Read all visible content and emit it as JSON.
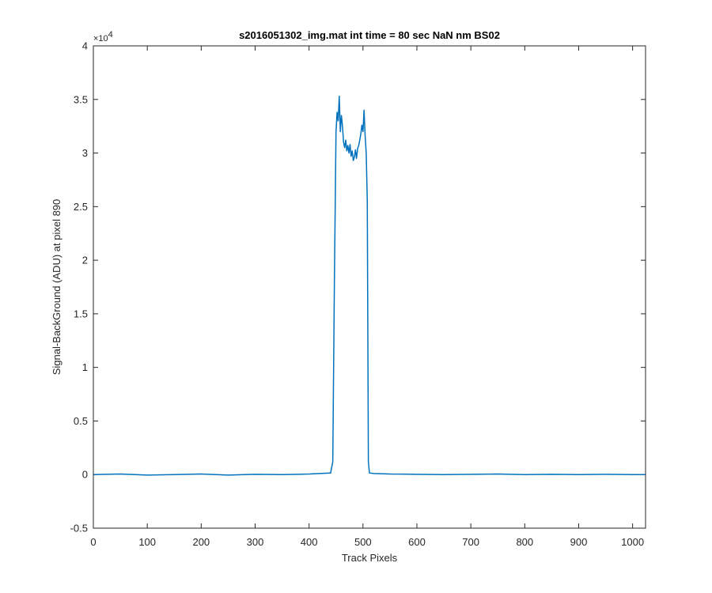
{
  "chart_data": {
    "type": "line",
    "title": "s2016051302_img.mat int time = 80 sec  NaN nm BS02",
    "xlabel": "Track Pixels",
    "ylabel": "Signal-BackGround (ADU) at pixel 890",
    "xlim": [
      0,
      1024
    ],
    "ylim": [
      -5000,
      40000
    ],
    "y_multiplier_label": "×10",
    "y_multiplier_exponent": "4",
    "xticks": [
      0,
      100,
      200,
      300,
      400,
      500,
      600,
      700,
      800,
      900,
      1000
    ],
    "xtick_labels": [
      "0",
      "100",
      "200",
      "300",
      "400",
      "500",
      "600",
      "700",
      "800",
      "900",
      "1000"
    ],
    "yticks": [
      -5000,
      0,
      5000,
      10000,
      15000,
      20000,
      25000,
      30000,
      35000,
      40000
    ],
    "ytick_labels": [
      "-0.5",
      "0",
      "0.5",
      "1",
      "1.5",
      "2",
      "2.5",
      "3",
      "3.5",
      "4"
    ],
    "grid": false,
    "series": [
      {
        "color": "#0072BD",
        "x": [
          0,
          50,
          100,
          150,
          200,
          250,
          300,
          350,
          400,
          440,
          444,
          447,
          450,
          452,
          454,
          456,
          458,
          460,
          462,
          464,
          466,
          468,
          470,
          472,
          474,
          476,
          478,
          480,
          482,
          484,
          486,
          488,
          490,
          492,
          494,
          496,
          498,
          500,
          502,
          504,
          506,
          508,
          510,
          512,
          520,
          550,
          600,
          650,
          700,
          750,
          800,
          850,
          900,
          950,
          1000,
          1024
        ],
        "y": [
          0,
          50,
          -50,
          0,
          50,
          -50,
          30,
          0,
          50,
          150,
          1200,
          18000,
          32000,
          33800,
          33000,
          35300,
          32000,
          33500,
          32500,
          31000,
          30500,
          31200,
          30200,
          30700,
          30000,
          30800,
          29700,
          30200,
          29300,
          29600,
          30300,
          29500,
          30400,
          30700,
          31200,
          31800,
          32600,
          32000,
          34000,
          31600,
          30000,
          25500,
          1200,
          150,
          100,
          50,
          30,
          0,
          30,
          50,
          0,
          30,
          0,
          30,
          0,
          0
        ]
      }
    ]
  }
}
